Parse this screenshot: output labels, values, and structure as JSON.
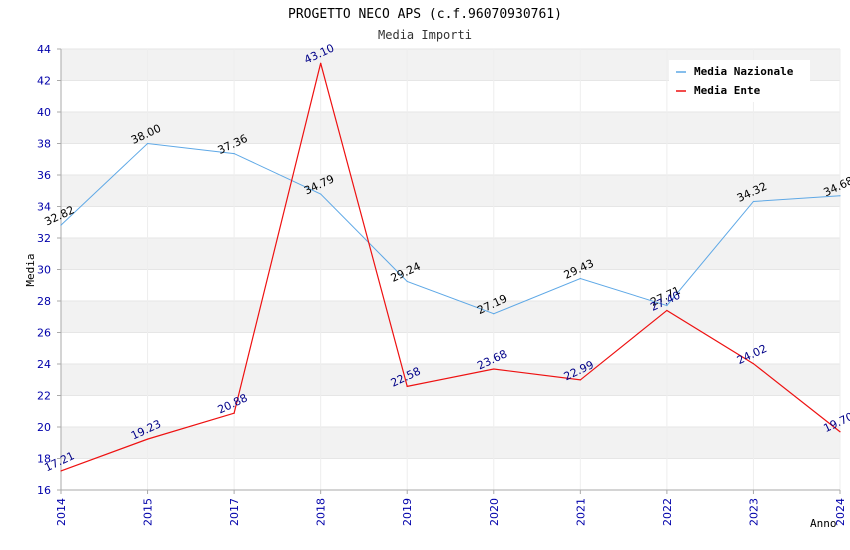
{
  "chart_data": {
    "type": "line",
    "title": "PROGETTO NECO APS (c.f.96070930761)",
    "subtitle": "Media Importi",
    "xlabel": "Anno",
    "ylabel": "Media",
    "categories": [
      "2014",
      "2015",
      "2017",
      "2018",
      "2019",
      "2020",
      "2021",
      "2022",
      "2023",
      "2024"
    ],
    "yticks": [
      "16",
      "18",
      "20",
      "22",
      "24",
      "26",
      "28",
      "30",
      "32",
      "34",
      "36",
      "38",
      "40",
      "42",
      "44"
    ],
    "ylim": [
      16,
      44
    ],
    "grid": true,
    "legend_position": "top-right",
    "series": [
      {
        "name": "Media Nazionale",
        "color": "#5ea8e6",
        "values": [
          32.82,
          38.0,
          37.36,
          34.79,
          29.24,
          27.19,
          29.43,
          27.71,
          34.32,
          34.68
        ],
        "labels": [
          "32.82",
          "38.00",
          "37.36",
          "34.79",
          "29.24",
          "27.19",
          "29.43",
          "27.71",
          "34.32",
          "34.68"
        ]
      },
      {
        "name": "Media Ente",
        "color": "#ee1111",
        "values": [
          17.21,
          19.23,
          20.88,
          43.1,
          22.58,
          23.68,
          22.99,
          27.4,
          24.02,
          19.7
        ],
        "labels": [
          "17.21",
          "19.23",
          "20.88",
          "43.10",
          "22.58",
          "23.68",
          "22.99",
          "27.40",
          "24.02",
          "19.70"
        ]
      }
    ]
  }
}
